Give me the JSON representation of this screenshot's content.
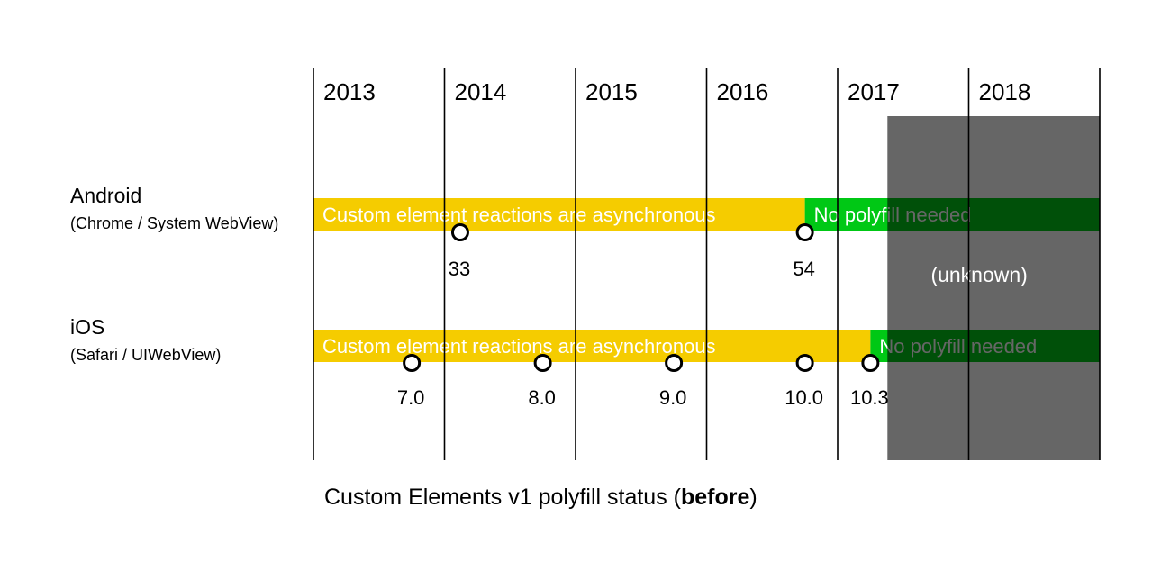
{
  "chart_data": {
    "type": "timeline",
    "title_prefix": "Custom Elements v1 polyfill status (",
    "title_bold": "before",
    "title_suffix": ")",
    "years": [
      "2013",
      "2014",
      "2015",
      "2016",
      "2017",
      "2018"
    ],
    "x_range": [
      2013,
      2019
    ],
    "unknown_region": {
      "start": 2017.38,
      "end": 2019,
      "label": "(unknown)",
      "color": "#666666"
    },
    "rows": [
      {
        "name": "Android",
        "subname": "(Chrome / System WebView)",
        "segments": [
          {
            "label": "Custom element reactions are asynchronous",
            "start": 2013,
            "end": 2016.75,
            "color": "#f5cc00"
          },
          {
            "label": "No polyfill needed",
            "start": 2016.75,
            "end": 2019,
            "color": "#00c815"
          }
        ],
        "milestones": [
          {
            "label": "33",
            "x": 2014.12
          },
          {
            "label": "54",
            "x": 2016.75
          }
        ]
      },
      {
        "name": "iOS",
        "subname": "(Safari / UIWebView)",
        "segments": [
          {
            "label": "Custom element reactions are asynchronous",
            "start": 2013,
            "end": 2017.25,
            "color": "#f5cc00"
          },
          {
            "label": "No polyfill needed",
            "start": 2017.25,
            "end": 2019,
            "color": "#00c815"
          }
        ],
        "milestones": [
          {
            "label": "7.0",
            "x": 2013.75
          },
          {
            "label": "8.0",
            "x": 2014.75
          },
          {
            "label": "9.0",
            "x": 2015.75
          },
          {
            "label": "10.0",
            "x": 2016.75
          },
          {
            "label": "10.3",
            "x": 2017.25
          }
        ]
      }
    ]
  }
}
